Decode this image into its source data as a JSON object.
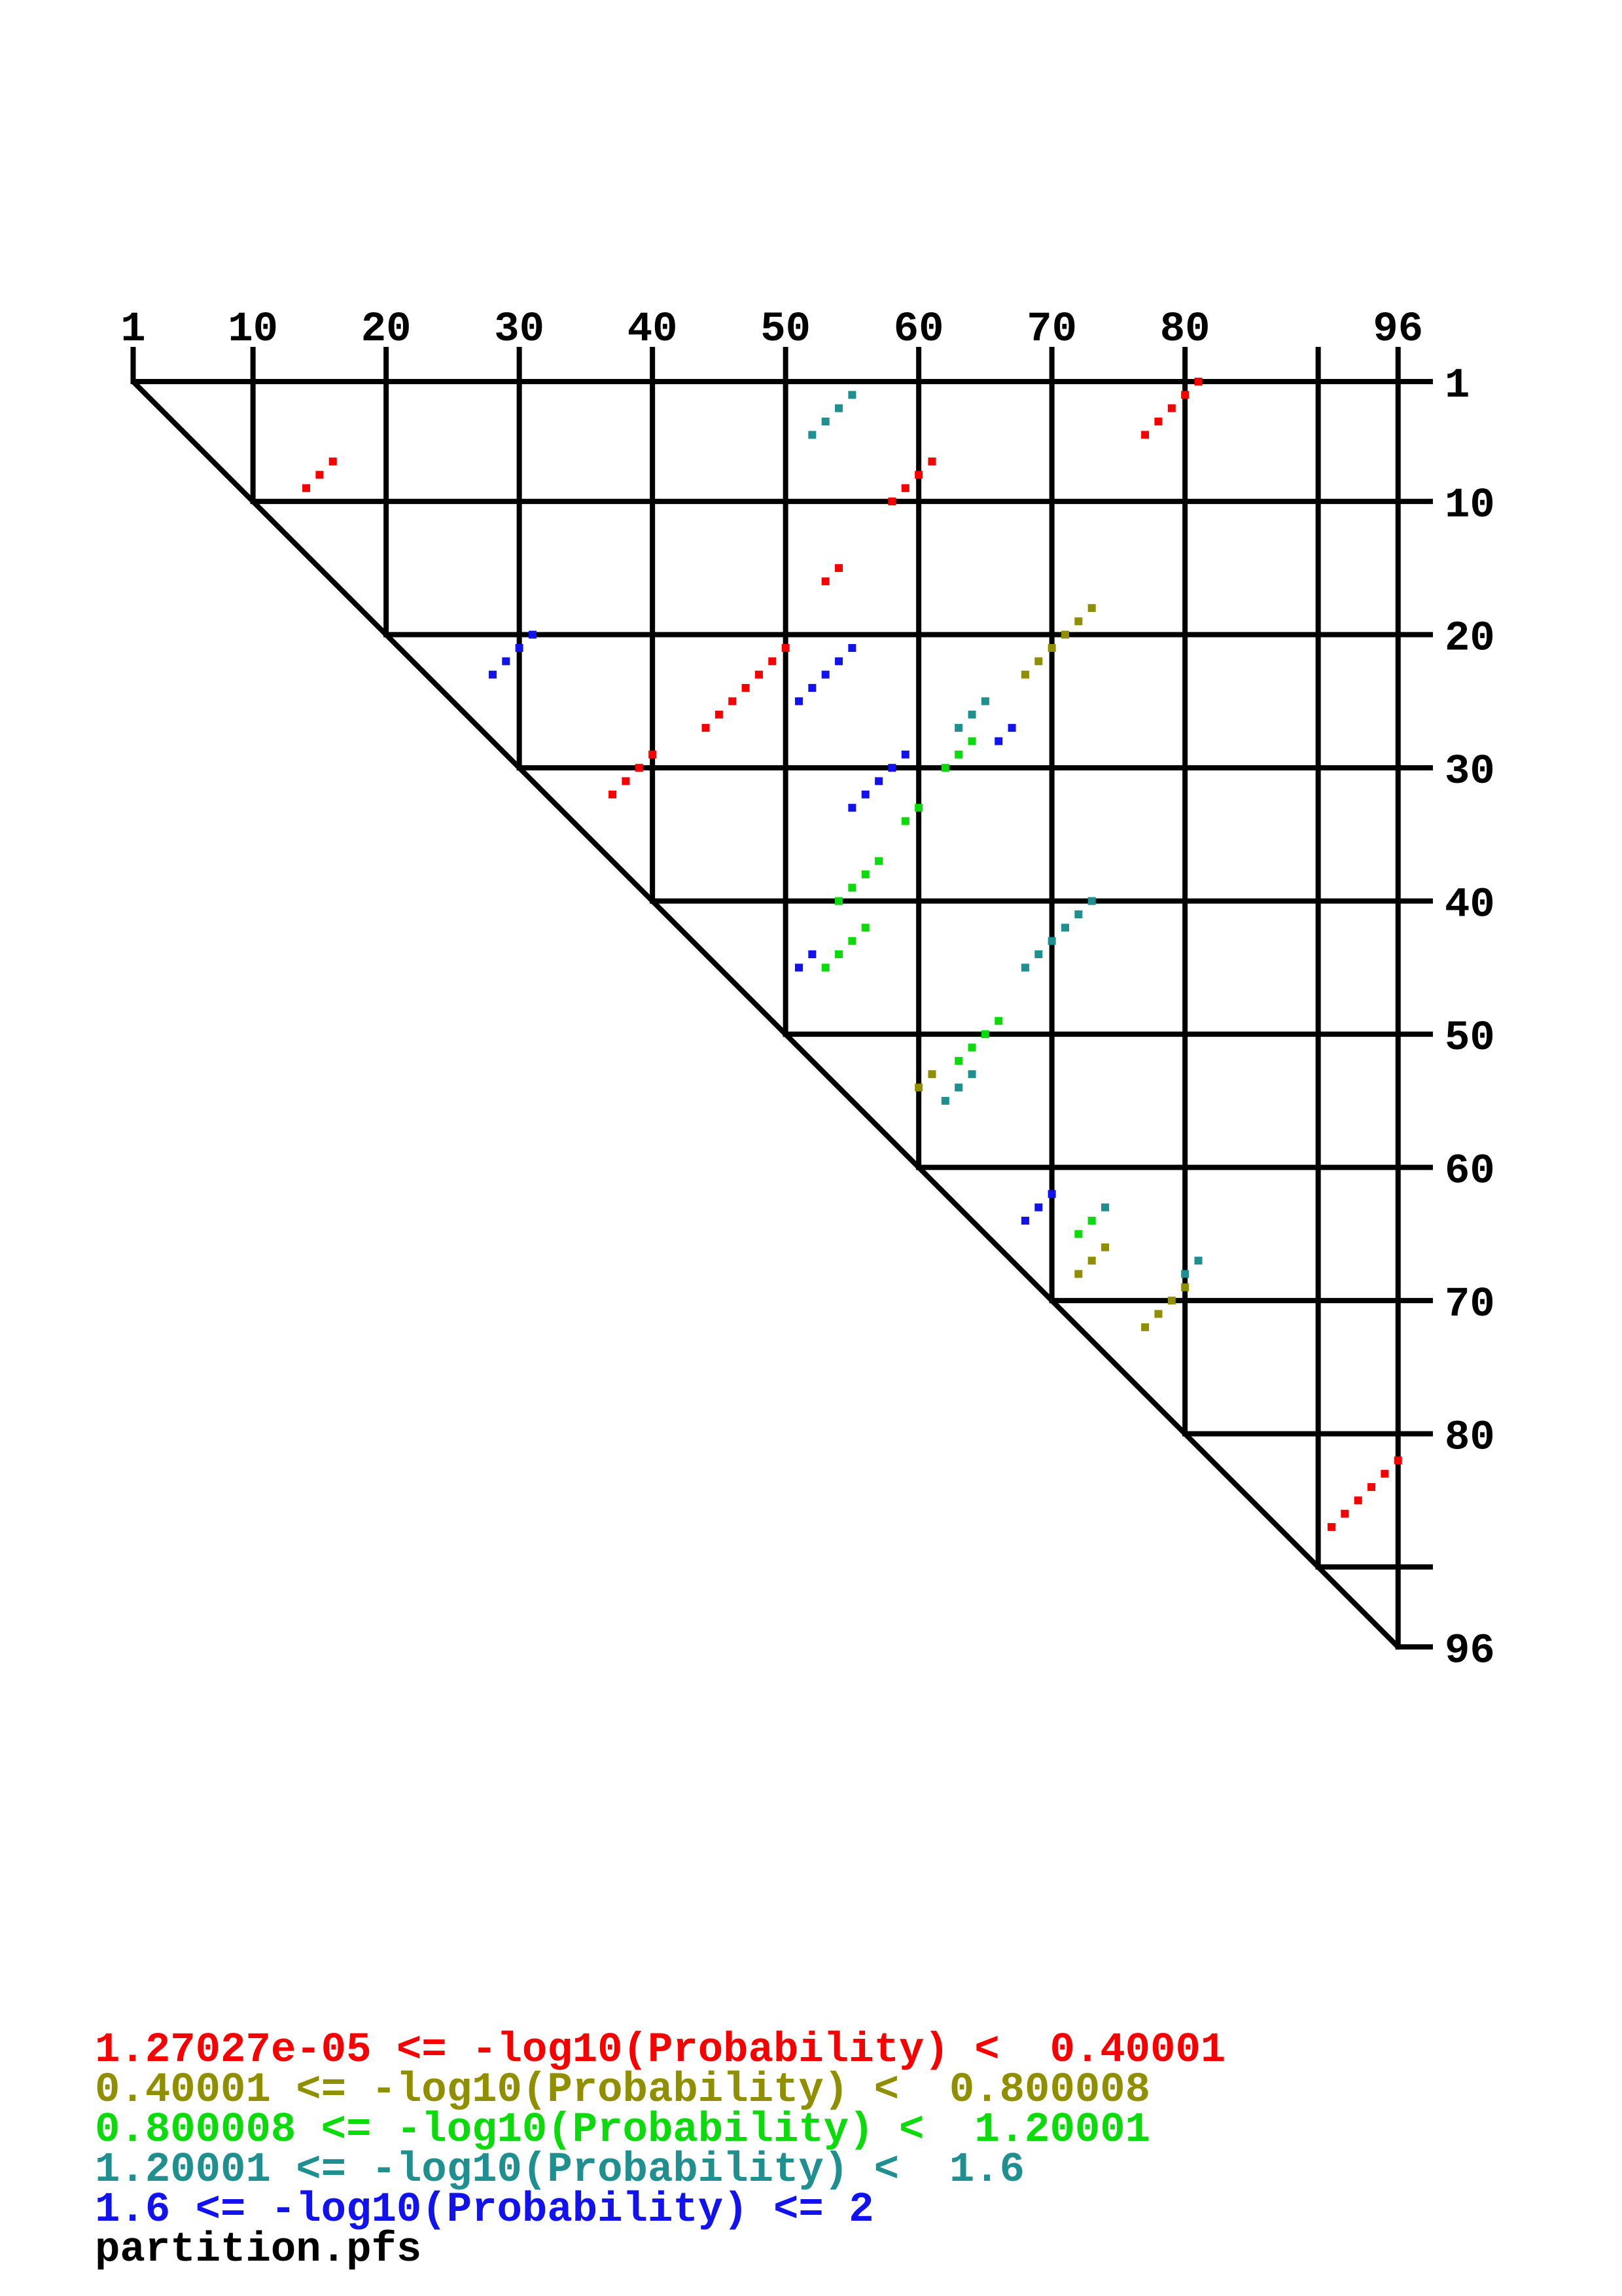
{
  "chart_data": {
    "type": "scatter",
    "subtype": "triangular-dot-plot",
    "title": "",
    "xlabel": "",
    "ylabel": "",
    "file_label": "partition.pfs",
    "axis": {
      "domain": [
        1,
        96
      ],
      "x_axis_position": "top",
      "y_axis_position": "right",
      "ticks": [
        1,
        10,
        20,
        30,
        40,
        50,
        60,
        70,
        80,
        90,
        96
      ],
      "labeled_ticks": [
        1,
        10,
        20,
        30,
        40,
        50,
        60,
        70,
        80,
        96
      ],
      "grid": true,
      "diagonal": true
    },
    "classes": [
      {
        "name": "class-1",
        "color": "#f80000",
        "label": "1.27027e-05 <= -log10(Probability) <  0.40001",
        "points": [
          [
            81,
            1
          ],
          [
            80,
            2
          ],
          [
            79,
            3
          ],
          [
            78,
            4
          ],
          [
            77,
            5
          ],
          [
            61,
            7
          ],
          [
            60,
            8
          ],
          [
            59,
            9
          ],
          [
            58,
            10
          ],
          [
            16,
            7
          ],
          [
            15,
            8
          ],
          [
            14,
            9
          ],
          [
            54,
            15
          ],
          [
            53,
            16
          ],
          [
            50,
            21
          ],
          [
            49,
            22
          ],
          [
            48,
            23
          ],
          [
            47,
            24
          ],
          [
            46,
            25
          ],
          [
            45,
            26
          ],
          [
            44,
            27
          ],
          [
            40,
            29
          ],
          [
            39,
            30
          ],
          [
            38,
            31
          ],
          [
            37,
            32
          ],
          [
            96,
            82
          ],
          [
            95,
            83
          ],
          [
            94,
            84
          ],
          [
            93,
            85
          ],
          [
            92,
            86
          ],
          [
            91,
            87
          ]
        ]
      },
      {
        "name": "class-2",
        "color": "#8f8f00",
        "label": "0.40001 <= -log10(Probability) <  0.800008",
        "points": [
          [
            73,
            18
          ],
          [
            72,
            19
          ],
          [
            71,
            20
          ],
          [
            70,
            21
          ],
          [
            69,
            22
          ],
          [
            68,
            23
          ],
          [
            61,
            53
          ],
          [
            60,
            54
          ],
          [
            74,
            66
          ],
          [
            73,
            67
          ],
          [
            72,
            68
          ],
          [
            80,
            69
          ],
          [
            79,
            70
          ],
          [
            78,
            71
          ],
          [
            77,
            72
          ]
        ]
      },
      {
        "name": "class-3",
        "color": "#0bdb0b",
        "label": "0.800008 <= -log10(Probability) <  1.20001",
        "points": [
          [
            64,
            28
          ],
          [
            63,
            29
          ],
          [
            62,
            30
          ],
          [
            60,
            33
          ],
          [
            59,
            34
          ],
          [
            57,
            37
          ],
          [
            56,
            38
          ],
          [
            55,
            39
          ],
          [
            54,
            40
          ],
          [
            56,
            42
          ],
          [
            55,
            43
          ],
          [
            54,
            44
          ],
          [
            53,
            45
          ],
          [
            66,
            49
          ],
          [
            65,
            50
          ],
          [
            64,
            51
          ],
          [
            63,
            52
          ],
          [
            73,
            64
          ],
          [
            72,
            65
          ]
        ]
      },
      {
        "name": "class-4",
        "color": "#1f8f8f",
        "label": "1.20001 <= -log10(Probability) <  1.6",
        "points": [
          [
            55,
            2
          ],
          [
            54,
            3
          ],
          [
            53,
            4
          ],
          [
            52,
            5
          ],
          [
            65,
            25
          ],
          [
            64,
            26
          ],
          [
            63,
            27
          ],
          [
            73,
            40
          ],
          [
            72,
            41
          ],
          [
            71,
            42
          ],
          [
            70,
            43
          ],
          [
            69,
            44
          ],
          [
            68,
            45
          ],
          [
            64,
            53
          ],
          [
            63,
            54
          ],
          [
            62,
            55
          ],
          [
            74,
            63
          ],
          [
            81,
            67
          ],
          [
            80,
            68
          ]
        ]
      },
      {
        "name": "class-5",
        "color": "#1212ee",
        "label": "1.6 <= -log10(Probability) <= 2",
        "points": [
          [
            31,
            20
          ],
          [
            30,
            21
          ],
          [
            29,
            22
          ],
          [
            28,
            23
          ],
          [
            55,
            21
          ],
          [
            54,
            22
          ],
          [
            53,
            23
          ],
          [
            52,
            24
          ],
          [
            51,
            25
          ],
          [
            67,
            27
          ],
          [
            66,
            28
          ],
          [
            59,
            29
          ],
          [
            58,
            30
          ],
          [
            57,
            31
          ],
          [
            56,
            32
          ],
          [
            55,
            33
          ],
          [
            52,
            44
          ],
          [
            51,
            45
          ],
          [
            70,
            62
          ],
          [
            69,
            63
          ],
          [
            68,
            64
          ]
        ]
      }
    ]
  }
}
